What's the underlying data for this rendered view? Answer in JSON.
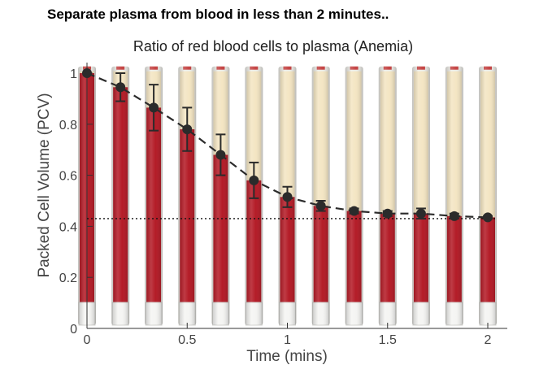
{
  "headline": "Separate plasma from blood in less than 2 minutes..",
  "chart_data": {
    "type": "scatter",
    "title": "Ratio of red blood cells to plasma (Anemia)",
    "xlabel": "Time (mins)",
    "ylabel": "Packed Cell Volume (PCV)",
    "xlim": [
      0,
      2
    ],
    "ylim": [
      0,
      1
    ],
    "xticks": [
      0,
      0.5,
      1,
      1.5,
      2
    ],
    "xtick_labels": [
      "0",
      "0.5",
      "1",
      "1.5",
      "2"
    ],
    "yticks": [
      0,
      0.2,
      0.4,
      0.6,
      0.8,
      1
    ],
    "ytick_labels": [
      "0",
      "0.2",
      "0.4",
      "0.6",
      "0.8",
      "1"
    ],
    "grid": false,
    "series": [
      {
        "x": [
          0,
          0.167,
          0.333,
          0.5,
          0.667,
          0.833,
          1.0,
          1.167,
          1.333,
          1.5,
          1.667,
          1.833,
          2.0
        ],
        "y": [
          1.0,
          0.945,
          0.865,
          0.78,
          0.68,
          0.58,
          0.515,
          0.48,
          0.46,
          0.45,
          0.45,
          0.44,
          0.435
        ],
        "error": [
          0.0,
          0.055,
          0.09,
          0.085,
          0.08,
          0.07,
          0.04,
          0.02,
          0.01,
          0.01,
          0.02,
          0.01,
          0.005
        ],
        "color": "#2b2b2b"
      }
    ],
    "reference_line": {
      "y": 0.43,
      "style": "dotted"
    },
    "colors": {
      "blood": "#b0101c",
      "plasma": "#f3e4c0",
      "marker": "#2b2b2b"
    }
  }
}
